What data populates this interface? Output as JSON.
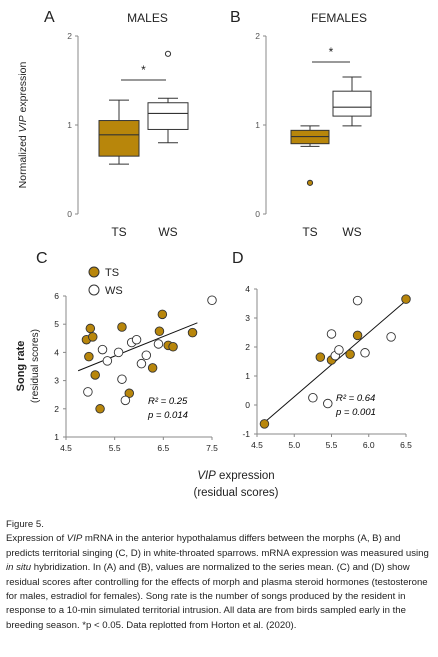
{
  "chart_data": [
    {
      "panel": "A",
      "type": "box",
      "title": "MALES",
      "ylabel": "Normalized VIP expression",
      "ylim": [
        0,
        2
      ],
      "yticks": [
        "0",
        "1",
        "2"
      ],
      "categories": [
        "TS",
        "WS"
      ],
      "boxes": [
        {
          "name": "TS",
          "whisker_low": 0.56,
          "q1": 0.65,
          "median": 0.89,
          "q3": 1.05,
          "whisker_high": 1.28,
          "outliers": []
        },
        {
          "name": "WS",
          "whisker_low": 0.8,
          "q1": 0.95,
          "median": 1.13,
          "q3": 1.25,
          "whisker_high": 1.3,
          "outliers": [
            1.8
          ]
        }
      ],
      "significance": "*",
      "colors": [
        "#b8860b",
        "#ffffff"
      ]
    },
    {
      "panel": "B",
      "type": "box",
      "title": "FEMALES",
      "ylim": [
        0,
        2
      ],
      "yticks": [
        "0",
        "1",
        "2"
      ],
      "categories": [
        "TS",
        "WS"
      ],
      "boxes": [
        {
          "name": "TS",
          "whisker_low": 0.76,
          "q1": 0.79,
          "median": 0.87,
          "q3": 0.94,
          "whisker_high": 0.99,
          "outliers": [
            0.35
          ]
        },
        {
          "name": "WS",
          "whisker_low": 0.99,
          "q1": 1.1,
          "median": 1.2,
          "q3": 1.38,
          "whisker_high": 1.54,
          "outliers": []
        }
      ],
      "significance": "*",
      "colors": [
        "#b8860b",
        "#ffffff"
      ]
    },
    {
      "panel": "C",
      "type": "scatter",
      "ylabel": "Song rate (residual scores)",
      "xlim": [
        4.5,
        7.5
      ],
      "ylim": [
        1,
        6
      ],
      "xticks": [
        "4.5",
        "5.5",
        "6.5",
        "7.5"
      ],
      "yticks": [
        "1",
        "2",
        "3",
        "4",
        "5",
        "6"
      ],
      "series": [
        {
          "name": "TS",
          "color": "#b8860b",
          "points": [
            [
              4.92,
              4.45
            ],
            [
              4.97,
              3.85
            ],
            [
              5.05,
              4.55
            ],
            [
              5.0,
              4.85
            ],
            [
              5.1,
              3.2
            ],
            [
              5.2,
              2.0
            ],
            [
              5.65,
              4.9
            ],
            [
              5.8,
              2.55
            ],
            [
              6.28,
              3.45
            ],
            [
              6.42,
              4.75
            ],
            [
              6.48,
              5.35
            ],
            [
              6.6,
              4.25
            ],
            [
              6.7,
              4.2
            ],
            [
              7.1,
              4.7
            ]
          ]
        },
        {
          "name": "WS",
          "color": "#ffffff",
          "points": [
            [
              4.95,
              2.6
            ],
            [
              5.25,
              4.1
            ],
            [
              5.35,
              3.7
            ],
            [
              5.65,
              3.05
            ],
            [
              5.72,
              2.3
            ],
            [
              5.85,
              4.35
            ],
            [
              5.95,
              4.45
            ],
            [
              6.15,
              3.9
            ],
            [
              6.4,
              4.3
            ],
            [
              7.5,
              5.85
            ],
            [
              6.05,
              3.6
            ],
            [
              5.58,
              4.0
            ]
          ]
        }
      ],
      "regression": {
        "x": [
          4.75,
          7.2
        ],
        "y": [
          3.35,
          5.05
        ]
      },
      "annotations": [
        "R² = 0.25",
        "p = 0.014"
      ]
    },
    {
      "panel": "D",
      "type": "scatter",
      "xlabel": "VIP expression (residual scores)",
      "xlim": [
        4.5,
        6.5
      ],
      "ylim": [
        -1,
        4
      ],
      "xticks": [
        "4.5",
        "5.0",
        "5.5",
        "6.0",
        "6.5"
      ],
      "yticks": [
        "-1",
        "0",
        "1",
        "2",
        "3",
        "4"
      ],
      "series": [
        {
          "name": "TS",
          "color": "#b8860b",
          "points": [
            [
              4.6,
              -0.65
            ],
            [
              5.35,
              1.65
            ],
            [
              5.5,
              1.55
            ],
            [
              5.75,
              1.75
            ],
            [
              5.85,
              2.4
            ],
            [
              6.5,
              3.65
            ]
          ]
        },
        {
          "name": "WS",
          "color": "#ffffff",
          "points": [
            [
              5.25,
              0.25
            ],
            [
              5.45,
              0.05
            ],
            [
              5.55,
              1.7
            ],
            [
              5.6,
              1.9
            ],
            [
              5.85,
              3.6
            ],
            [
              5.5,
              2.45
            ],
            [
              5.95,
              1.8
            ],
            [
              6.3,
              2.35
            ]
          ]
        }
      ],
      "regression": {
        "x": [
          4.6,
          6.5
        ],
        "y": [
          -0.6,
          3.6
        ]
      },
      "annotations": [
        "R² = 0.64",
        "p = 0.001"
      ]
    }
  ],
  "caption": {
    "title": "Figure 5.",
    "body": "Expression of VIP mRNA in the anterior hypothalamus differs between the morphs (A, B) and predicts territorial singing (C, D) in white-throated sparrows. mRNA expression was measured using in situ hybridization. In (A) and (B), values are normalized to the series mean. (C) and (D) show residual scores after controlling for the effects of morph and plasma steroid hormones (testosterone for males, estradiol for females). Song rate is the number of songs produced by the resident in response to a 10-min simulated territorial intrusion. All data are from birds sampled early in the breeding season. *p < 0.05. Data replotted from Horton et al. (2020)."
  }
}
